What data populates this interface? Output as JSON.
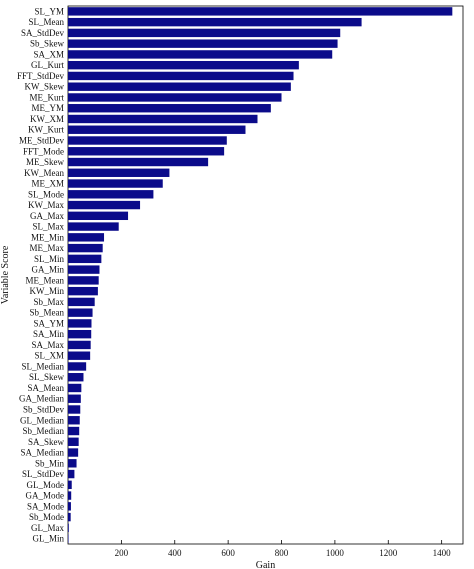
{
  "colors": {
    "bar": "#0b0b8a",
    "axis": "#000000",
    "background": "#ffffff"
  },
  "chart_data": {
    "type": "bar",
    "orientation": "horizontal",
    "xlabel": "Gain",
    "ylabel": "Variable Score",
    "xlim": [
      0,
      1480
    ],
    "xticks": [
      200,
      400,
      600,
      800,
      1000,
      1200,
      1400
    ],
    "grid": false,
    "categories": [
      "SL_YM",
      "SL_Mean",
      "SA_StdDev",
      "Sb_Skew",
      "SA_XM",
      "GL_Kurt",
      "FFT_StdDev",
      "KW_Skew",
      "ME_Kurt",
      "ME_YM",
      "KW_XM",
      "KW_Kurt",
      "ME_StdDev",
      "FFT_Mode",
      "ME_Skew",
      "KW_Mean",
      "ME_XM",
      "SL_Mode",
      "KW_Max",
      "GA_Max",
      "SL_Max",
      "ME_Min",
      "ME_Max",
      "SL_Min",
      "GA_Min",
      "ME_Mean",
      "KW_Min",
      "Sb_Max",
      "Sb_Mean",
      "SA_YM",
      "SA_Min",
      "SA_Max",
      "SL_XM",
      "SL_Median",
      "SL_Skew",
      "SA_Mean",
      "GA_Median",
      "Sb_StdDev",
      "GL_Median",
      "Sb_Median",
      "SA_Skew",
      "SA_Median",
      "Sb_Min",
      "SL_StdDev",
      "GL_Mode",
      "GA_Mode",
      "SA_Mode",
      "Sb_Mode",
      "GL_Max",
      "GL_Min"
    ],
    "values": [
      1440,
      1100,
      1020,
      1010,
      990,
      865,
      845,
      835,
      800,
      760,
      710,
      665,
      595,
      585,
      525,
      380,
      355,
      320,
      270,
      225,
      190,
      135,
      130,
      125,
      118,
      115,
      112,
      100,
      92,
      88,
      87,
      85,
      83,
      68,
      58,
      50,
      48,
      46,
      44,
      42,
      40,
      38,
      32,
      24,
      14,
      12,
      11,
      10,
      3,
      2
    ]
  }
}
